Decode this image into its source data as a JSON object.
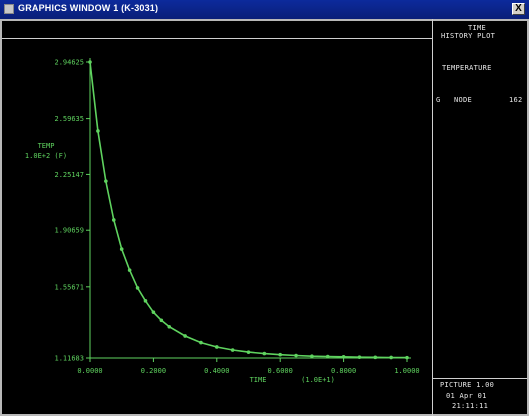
{
  "window": {
    "title": "GRAPHICS WINDOW  1 (K-3031)",
    "close_label": "X"
  },
  "side_panel": {
    "title_lines": [
      "TIME",
      "HISTORY PLOT"
    ],
    "heading": "TEMPERATURE",
    "legend_symbol": "G",
    "legend_col1": "NODE",
    "legend_col2": "162",
    "footer_lines": [
      "PICTURE 1.00",
      "01 Apr 01",
      "21:11:11"
    ]
  },
  "colors": {
    "plot": "#5fd35f",
    "background": "#000000",
    "frame": "#cfcfcf",
    "titlebar": "#0c2a9c"
  },
  "chart_data": {
    "type": "line",
    "title": "",
    "ylabel": "TEMP",
    "ylabel_sub": "1.0E+2 (F)",
    "xlabel": "TIME",
    "xlabel_unit": "(1.0E+1)",
    "yticks": [
      "2.94625",
      "2.59635",
      "2.25147",
      "1.90659",
      "1.55671",
      "1.11683"
    ],
    "ytick_values": [
      2.94625,
      2.59635,
      2.25147,
      1.90659,
      1.55671,
      1.11683
    ],
    "xticks": [
      "0.0000",
      "0.2000",
      "0.4000",
      "0.6000",
      "0.8000",
      "1.0000"
    ],
    "xtick_values": [
      0.0,
      0.2,
      0.4,
      0.6,
      0.8,
      1.0
    ],
    "ylim": [
      1.11683,
      2.94625
    ],
    "xlim": [
      0.0,
      1.0
    ],
    "series": [
      {
        "x": [
          0.0,
          0.025,
          0.05,
          0.075,
          0.1,
          0.125,
          0.15,
          0.175,
          0.2,
          0.225,
          0.25,
          0.3,
          0.35,
          0.4,
          0.45,
          0.5,
          0.55,
          0.6,
          0.65,
          0.7,
          0.75,
          0.8,
          0.85,
          0.9,
          0.95,
          1.0
        ],
        "y": [
          2.946,
          2.52,
          2.21,
          1.97,
          1.79,
          1.66,
          1.55,
          1.47,
          1.4,
          1.35,
          1.31,
          1.253,
          1.212,
          1.185,
          1.166,
          1.153,
          1.144,
          1.137,
          1.132,
          1.128,
          1.126,
          1.124,
          1.122,
          1.121,
          1.12,
          1.119
        ]
      }
    ]
  }
}
